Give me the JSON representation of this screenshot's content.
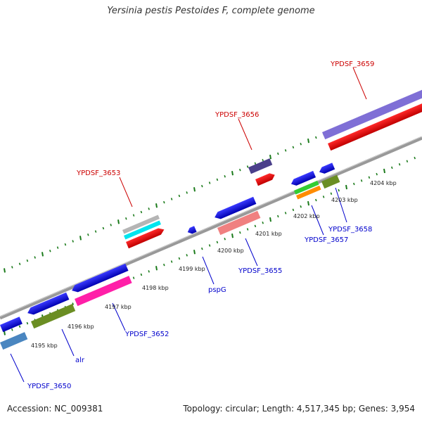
{
  "title": "Yersinia pestis Pestoides F, complete genome",
  "footer": {
    "accession": "Accession: NC_009381",
    "summary": "Topology: circular; Length: 4,517,345 bp; Genes: 3,954"
  },
  "colors": {
    "forward_label": "#cc0000",
    "reverse_label": "#0000cc",
    "tick": "#1a7a1a",
    "backbone": "#888888"
  },
  "scale_labels": [
    "4195 kbp",
    "4196 kbp",
    "4197 kbp",
    "4198 kbp",
    "4199 kbp",
    "4200 kbp",
    "4201 kbp",
    "4202 kbp",
    "4203 kbp",
    "4204 kbp"
  ],
  "gene_labels": [
    {
      "text": "YPDSF_3653",
      "strand": "forward"
    },
    {
      "text": "YPDSF_3656",
      "strand": "forward"
    },
    {
      "text": "YPDSF_3659",
      "strand": "forward"
    },
    {
      "text": "YPDSF_3650",
      "strand": "reverse"
    },
    {
      "text": "alr",
      "strand": "reverse"
    },
    {
      "text": "YPDSF_3652",
      "strand": "reverse"
    },
    {
      "text": "pspG",
      "strand": "reverse"
    },
    {
      "text": "YPDSF_3655",
      "strand": "reverse"
    },
    {
      "text": "YPDSF_3657",
      "strand": "reverse"
    },
    {
      "text": "YPDSF_3658",
      "strand": "reverse"
    }
  ]
}
